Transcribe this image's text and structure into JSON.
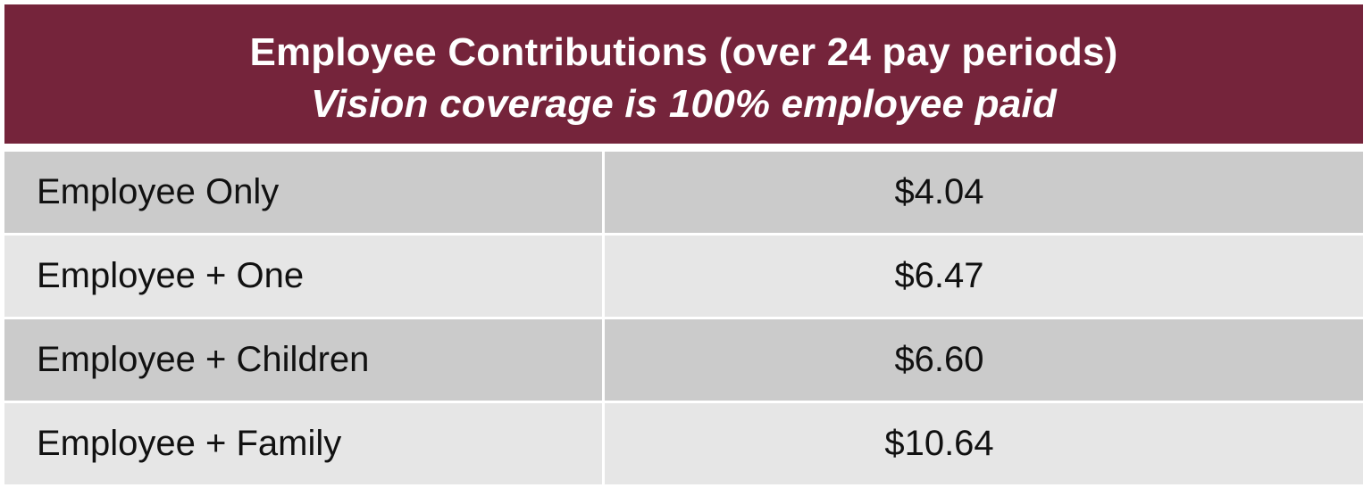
{
  "header": {
    "title": "Employee Contributions (over 24 pay periods)",
    "subtitle": "Vision coverage is 100% employee paid"
  },
  "rows": [
    {
      "tier": "Employee Only",
      "amount": "$4.04"
    },
    {
      "tier": "Employee + One",
      "amount": "$6.47"
    },
    {
      "tier": "Employee + Children",
      "amount": "$6.60"
    },
    {
      "tier": "Employee + Family",
      "amount": "$10.64"
    }
  ],
  "colors": {
    "header_bg": "#75243b",
    "row_dark": "#cbcbcb",
    "row_light": "#e6e6e6"
  }
}
